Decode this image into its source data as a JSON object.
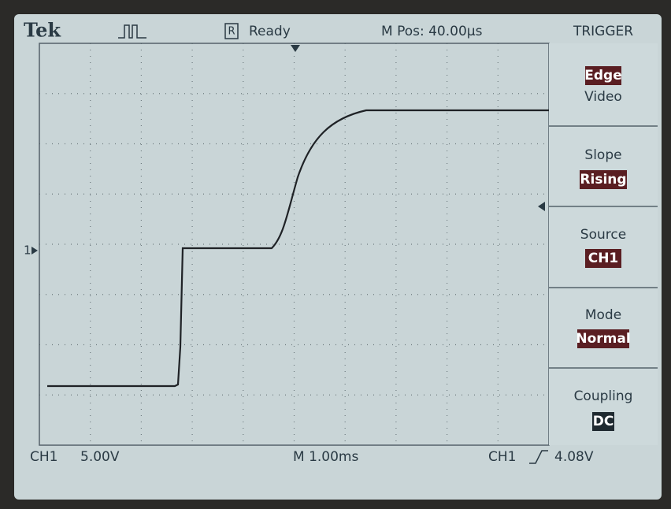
{
  "header": {
    "brand": "Tek",
    "status_icon": "R",
    "status": "Ready",
    "position": "M Pos: 40.00µs"
  },
  "channel_marker": "1",
  "menu": {
    "title": "TRIGGER",
    "items": [
      {
        "options": [
          "Edge",
          "Video"
        ]
      },
      {
        "label": "Slope",
        "value": "Rising"
      },
      {
        "label": "Source",
        "value": "CH1"
      },
      {
        "label": "Mode",
        "value": "Normal"
      },
      {
        "label": "Coupling",
        "value": "DC"
      }
    ]
  },
  "footer": {
    "channel": "CH1",
    "scale": "5.00V",
    "timebase": "M 1.00ms",
    "trigger_source": "CH1",
    "trigger_level": "4.08V"
  }
}
